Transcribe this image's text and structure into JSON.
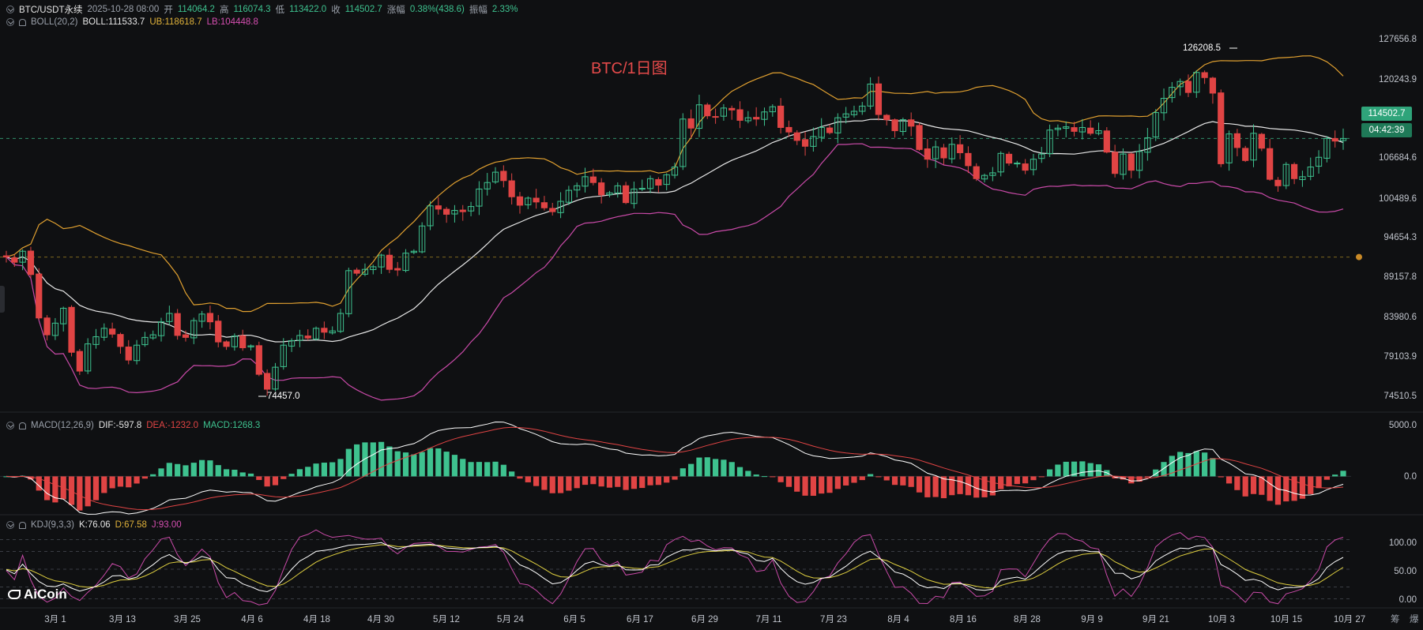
{
  "header": {
    "symbol": "BTC/USDT永续",
    "datetime": "2025-10-28 08:00",
    "open_label": "开",
    "open": "114064.2",
    "high_label": "高",
    "high": "116074.3",
    "low_label": "低",
    "low": "113422.0",
    "close_label": "收",
    "close": "114502.7",
    "change_label": "涨幅",
    "change": "0.38%(438.6)",
    "amp_label": "振幅",
    "amp": "2.33%"
  },
  "boll": {
    "name": "BOLL(20,2)",
    "mid": "BOLL:111533.7",
    "ub": "UB:118618.7",
    "lb": "LB:104448.8"
  },
  "macd": {
    "name": "MACD(12,26,9)",
    "dif": "DIF:-597.8",
    "dea": "DEA:-1232.0",
    "macd": "MACD:1268.3"
  },
  "kdj": {
    "name": "KDJ(9,3,3)",
    "k": "K:76.06",
    "d": "D:67.58",
    "j": "J:93.00"
  },
  "overlay_title": "BTC/1日图",
  "price_axis": [
    "127656.8",
    "120243.9",
    "106684.6",
    "100489.6",
    "94654.3",
    "89157.8",
    "83980.6",
    "79103.9",
    "74510.5"
  ],
  "current_price": "114502.7",
  "countdown": "04:42:39",
  "macd_axis": [
    "5000.0",
    "0.0"
  ],
  "kdj_axis": [
    "100.00",
    "50.00",
    "0.00"
  ],
  "x_axis": [
    "3月 1",
    "3月 13",
    "3月 25",
    "4月 6",
    "4月 18",
    "4月 30",
    "5月 12",
    "5月 24",
    "6月 5",
    "6月 17",
    "6月 29",
    "7月 11",
    "7月 23",
    "8月 4",
    "8月 16",
    "8月 28",
    "9月 9",
    "9月 21",
    "10月 3",
    "10月 15",
    "10月 27"
  ],
  "annotations": {
    "high_mark": "126208.5",
    "low_mark": "74457.0"
  },
  "corner_labels": [
    "筹",
    "爆"
  ],
  "logo": "AiCoin",
  "colors": {
    "up": "#3ec28f",
    "down": "#e04444",
    "mid": "#e8e8e8",
    "ub": "#e0a030",
    "lb": "#c94aa8",
    "k": "#ffffff",
    "d": "#e0d040",
    "j": "#c94aa8"
  },
  "chart_data": {
    "type": "candlestick",
    "ylim": [
      73000,
      131000
    ],
    "closes": [
      96200,
      95400,
      97100,
      93500,
      86800,
      84200,
      86000,
      88300,
      81500,
      78600,
      82800,
      83900,
      85200,
      84300,
      82400,
      80300,
      82600,
      83800,
      84200,
      86200,
      87500,
      84100,
      83800,
      86400,
      87400,
      86200,
      83100,
      82400,
      84000,
      82200,
      82500,
      78100,
      75800,
      79200,
      82600,
      83300,
      84100,
      83700,
      85200,
      84600,
      84800,
      87500,
      94100,
      93700,
      94300,
      94700,
      96500,
      94300,
      94200,
      96800,
      97100,
      101000,
      104100,
      103600,
      102800,
      103400,
      103200,
      104000,
      106700,
      107700,
      109300,
      108000,
      105500,
      104200,
      105300,
      104700,
      103800,
      103200,
      104800,
      106500,
      107200,
      108600,
      107700,
      105800,
      106100,
      107200,
      104600,
      106700,
      106800,
      108300,
      107300,
      108900,
      110100,
      117500,
      116100,
      119700,
      118000,
      117800,
      119200,
      118900,
      117300,
      117700,
      117500,
      118600,
      119400,
      116200,
      115500,
      114200,
      113300,
      114800,
      116200,
      115400,
      117700,
      118300,
      118700,
      119500,
      122900,
      118200,
      117400,
      115700,
      117400,
      116400,
      112800,
      111300,
      113200,
      111500,
      113600,
      112300,
      110300,
      108300,
      108800,
      109200,
      112200,
      110700,
      110700,
      109600,
      111300,
      112100,
      115800,
      116100,
      116300,
      115600,
      116200,
      115300,
      115700,
      112400,
      109100,
      112100,
      109600,
      112500,
      114600,
      118500,
      120700,
      122400,
      123300,
      121600,
      124700,
      123900,
      121500,
      110600,
      115200,
      113100,
      111100,
      115300,
      113000,
      108200,
      107200,
      110500,
      108300,
      108600,
      110100,
      111600,
      114500,
      114100,
      114502.7
    ],
    "boll_mid_last": 111533.7,
    "boll_ub_last": 118618.7,
    "boll_lb_last": 104448.8,
    "price_levels": [
      127656.8,
      120243.9,
      106684.6,
      100489.6,
      94654.3,
      89157.8,
      83980.6,
      79103.9,
      74510.5
    ],
    "macd_ylim": [
      -3400,
      5600
    ],
    "kdj_ylim": [
      -10,
      110
    ]
  }
}
